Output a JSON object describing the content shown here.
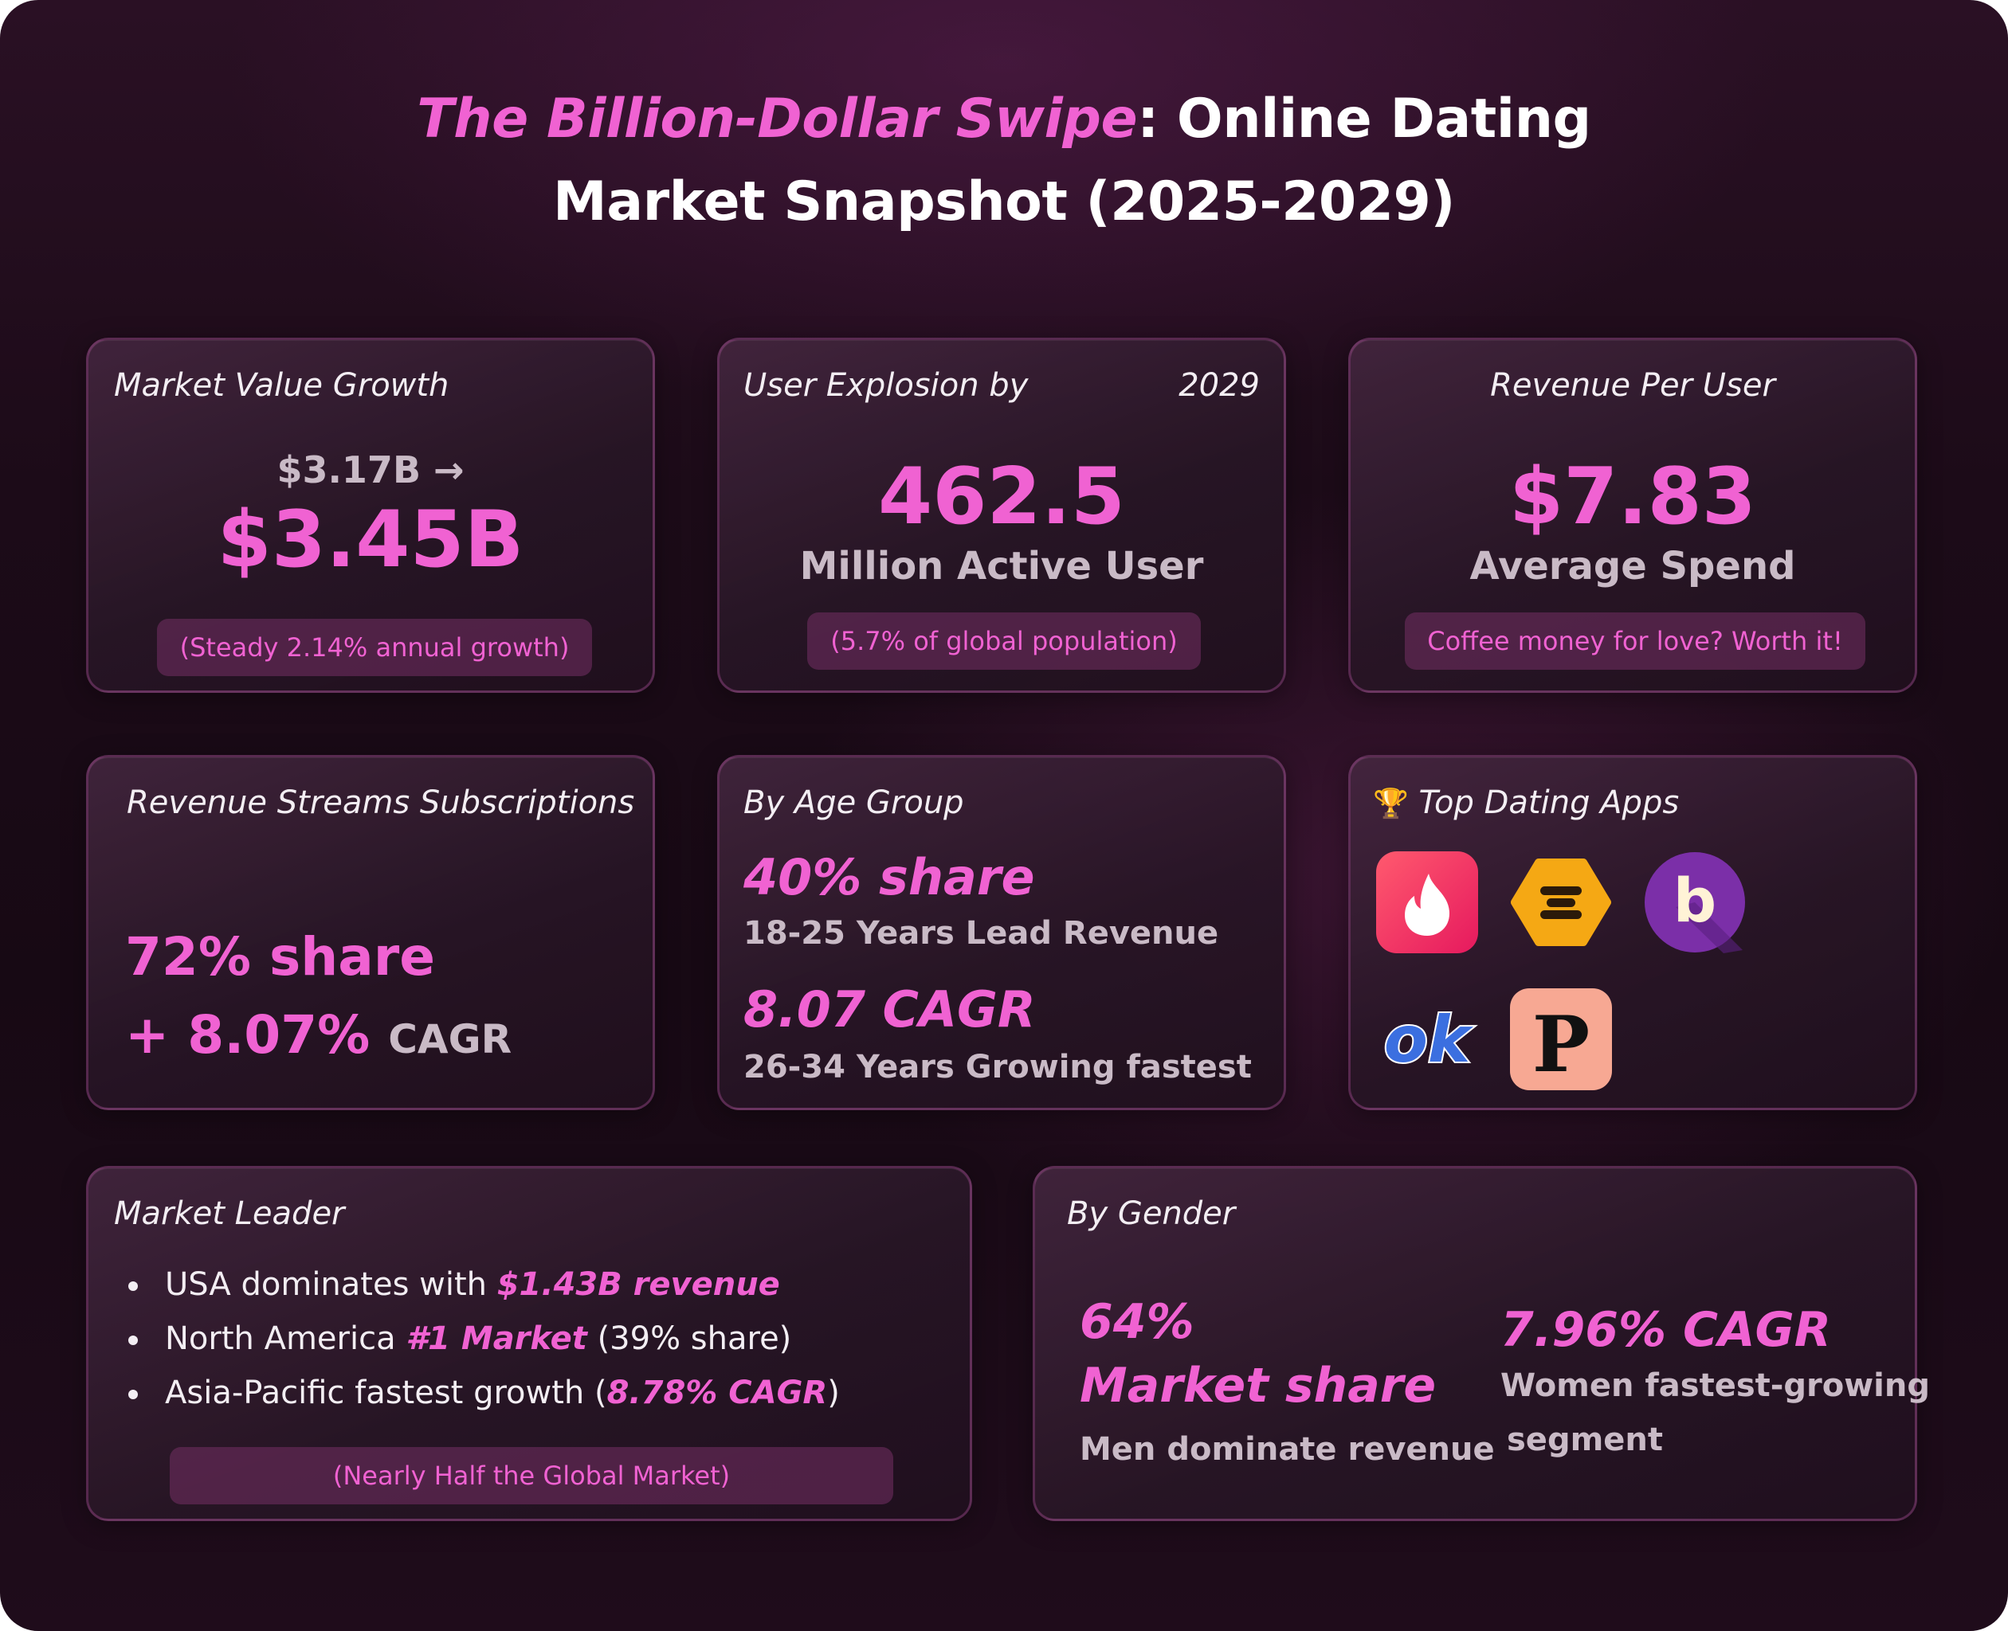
{
  "title": {
    "highlight": "The Billion-Dollar Swipe",
    "line1_rest": ": Online Dating",
    "line2": "Market Snapshot (2025-2029)"
  },
  "market_value": {
    "label": "Market Value Growth",
    "from": "$3.17B →",
    "to": "$3.45B",
    "note": "(Steady 2.14% annual growth)"
  },
  "users": {
    "label": "User Explosion by",
    "year": "2029",
    "value": "462.5",
    "unit": "Million Active User",
    "note": "(5.7% of global population)"
  },
  "revenue_per_user": {
    "label": "Revenue Per User",
    "value": "$7.83",
    "unit": "Average Spend",
    "note": "Coffee money for love? Worth it!"
  },
  "revenue_streams": {
    "label": "Revenue Streams Subscriptions",
    "share": "72% share",
    "cagr_value": "+ 8.07%",
    "cagr_label": "CAGR"
  },
  "age_group": {
    "label": "By Age Group",
    "share": "40% share",
    "share_desc": "18-25 Years Lead Revenue",
    "cagr": "8.07 CAGR",
    "cagr_desc": "26-34 Years Growing fastest"
  },
  "top_apps": {
    "trophy": "🏆",
    "label": "Top Dating Apps",
    "apps": [
      "tinder-icon",
      "bumble-icon",
      "badoo-icon",
      "okcupid-icon",
      "plenty-of-fish-icon"
    ],
    "ok_text": "ok",
    "p_text": "P",
    "b_text": "b"
  },
  "market_leader": {
    "label": "Market Leader",
    "b1_pre": "USA dominates with ",
    "b1_em": "$1.43B revenue",
    "b2_pre": "North America ",
    "b2_em": "#1 Market",
    "b2_post": " (39% share)",
    "b3_pre": "Asia-Pacific fastest growth (",
    "b3_em": "8.78% CAGR",
    "b3_post": ")",
    "note": "(Nearly Half the Global Market)"
  },
  "gender": {
    "label": "By Gender",
    "men_pct": "64%",
    "men_title": "Market share",
    "men_desc": "Men dominate revenue",
    "women_cagr": "7.96% CAGR",
    "women_desc1": "Women fastest-growing",
    "women_desc2": "segment"
  },
  "colors": {
    "accent": "#f062d2",
    "background": "#1c0b18",
    "muted_text": "#c9bac6"
  }
}
